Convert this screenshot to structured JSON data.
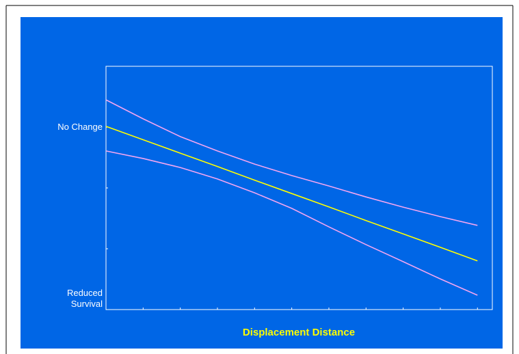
{
  "chart_data": {
    "type": "line",
    "x_label": "Displacement Distance",
    "x": [
      0,
      1,
      2,
      3,
      4,
      5,
      6,
      7,
      8,
      9,
      10
    ],
    "xlim": [
      0,
      10.4
    ],
    "xticks": [
      0,
      1,
      2,
      3,
      4,
      5,
      6,
      7,
      8,
      9,
      10
    ],
    "ylim": [
      0,
      100
    ],
    "yticks": [
      {
        "value": 0,
        "label": "Reduced Survival"
      },
      {
        "value": 75,
        "label": "No Change"
      }
    ],
    "minor_yticks": [
      25,
      50,
      100
    ],
    "background": "#0066e6",
    "series": [
      {
        "color": "#f3a6f0",
        "values": [
          86.2,
          78.4,
          71.1,
          65.2,
          59.8,
          55.1,
          50.8,
          46.3,
          42.1,
          38.2,
          34.6
        ]
      },
      {
        "color": "#ffff00",
        "values": [
          75.3,
          69.8,
          64.3,
          58.8,
          53.2,
          47.7,
          42.2,
          36.6,
          31.1,
          25.6,
          20
        ]
      },
      {
        "color": "#f3a6f0",
        "values": [
          65.2,
          62.1,
          58.4,
          53.7,
          48.0,
          41.6,
          34.0,
          26.7,
          19.7,
          12.6,
          5.9
        ]
      }
    ]
  }
}
